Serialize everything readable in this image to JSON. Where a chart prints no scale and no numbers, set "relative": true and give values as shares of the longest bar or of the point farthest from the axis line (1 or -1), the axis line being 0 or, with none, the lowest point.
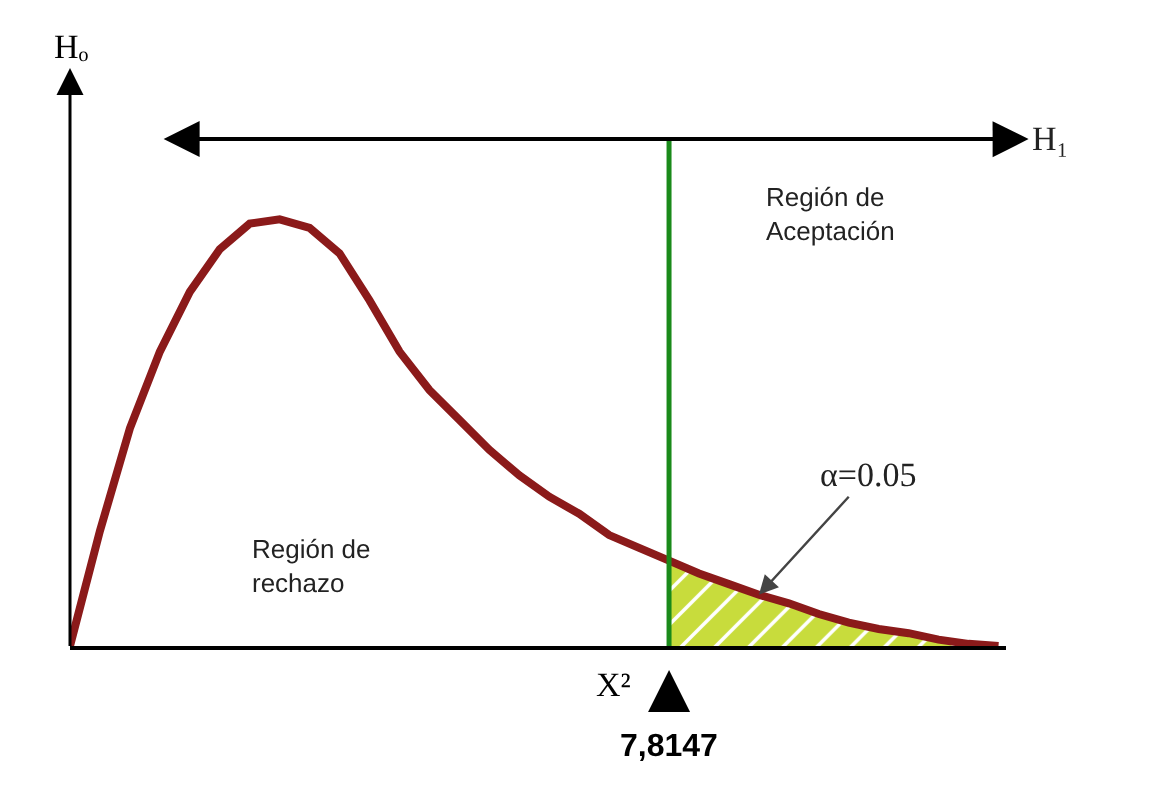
{
  "chart_data": {
    "type": "line",
    "relative": true,
    "xlabel": "X²",
    "ylabel": "Hₒ",
    "categories": [
      null,
      null,
      null,
      null,
      null,
      null,
      null,
      null,
      null,
      null,
      null,
      null,
      null,
      null,
      null,
      null,
      null,
      null,
      null,
      null,
      null,
      null,
      null,
      null,
      null,
      null,
      null,
      null,
      null,
      null,
      null,
      null
    ],
    "series": [
      {
        "type": "area",
        "color": "#c8dc3c",
        "values": [
          null,
          null,
          null,
          null,
          null,
          null,
          null,
          null,
          null,
          null,
          null,
          null,
          null,
          null,
          null,
          null,
          null,
          null,
          null,
          null,
          0.2,
          0.17,
          0.145,
          0.12,
          0.1,
          0.075,
          0.055,
          0.04,
          0.03,
          0.015,
          0.005,
          0
        ]
      },
      {
        "color": "#8b1a1a",
        "values": [
          0,
          0.27,
          0.51,
          0.69,
          0.83,
          0.93,
          0.99,
          1,
          0.98,
          0.92,
          0.81,
          0.69,
          0.6,
          0.53,
          0.46,
          0.4,
          0.35,
          0.31,
          0.26,
          0.23,
          0.2,
          0.17,
          0.145,
          0.12,
          0.1,
          0.075,
          0.055,
          0.04,
          0.03,
          0.015,
          0.005,
          0
        ]
      }
    ],
    "ref_lines": [
      {
        "axis": "x",
        "label": "7,8147",
        "color": "#1a8a1a"
      }
    ],
    "annotations": [
      "Región de\nAceptación",
      "Región de\nrechazo",
      "α=0.05",
      "H₁"
    ]
  }
}
